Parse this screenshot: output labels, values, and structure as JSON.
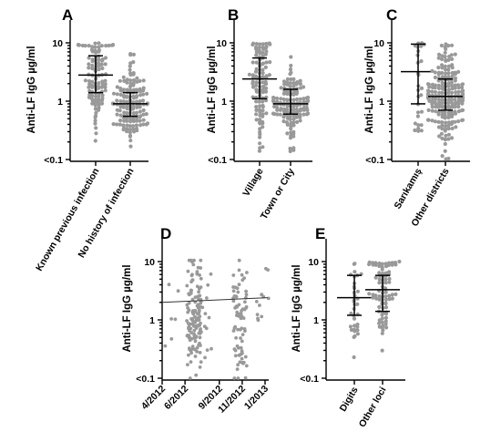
{
  "chart_data": [
    {
      "panel": "A",
      "type": "scatter",
      "ylabel": "Anti-LF IgG µg/ml",
      "yscale": "log",
      "ylim": [
        0.1,
        12
      ],
      "yticks": [
        {
          "v": 10,
          "label": "10"
        },
        {
          "v": 1,
          "label": "1"
        },
        {
          "v": 0.1,
          "label": "<0.1"
        }
      ],
      "categories": [
        "Known previous infection",
        "No history of infection"
      ],
      "groups": [
        {
          "n": 110,
          "median": 2.8,
          "q1": 1.4,
          "q3": 6.0,
          "min": 0.2,
          "max": 10
        },
        {
          "n": 150,
          "median": 0.9,
          "q1": 0.55,
          "q3": 1.4,
          "min": 0.1,
          "max": 7
        }
      ]
    },
    {
      "panel": "B",
      "type": "scatter",
      "ylabel": "Anti-LF IgG µg/ml",
      "yscale": "log",
      "ylim": [
        0.1,
        12
      ],
      "yticks": [
        {
          "v": 10,
          "label": "10"
        },
        {
          "v": 1,
          "label": "1"
        },
        {
          "v": 0.1,
          "label": "<0.1"
        }
      ],
      "categories": [
        "Village",
        "Town or City"
      ],
      "groups": [
        {
          "n": 110,
          "median": 2.4,
          "q1": 1.1,
          "q3": 5.5,
          "min": 0.1,
          "max": 10
        },
        {
          "n": 140,
          "median": 0.9,
          "q1": 0.6,
          "q3": 1.6,
          "min": 0.1,
          "max": 7
        }
      ]
    },
    {
      "panel": "C",
      "type": "scatter",
      "ylabel": "Anti-LF IgG µg/ml",
      "yscale": "log",
      "ylim": [
        0.1,
        12
      ],
      "yticks": [
        {
          "v": 10,
          "label": "10"
        },
        {
          "v": 1,
          "label": "1"
        },
        {
          "v": 0.1,
          "label": "<0.1"
        }
      ],
      "categories": [
        "Sarıkamış",
        "Other districts"
      ],
      "groups": [
        {
          "n": 28,
          "median": 3.2,
          "q1": 0.9,
          "q3": 9.5,
          "min": 0.3,
          "max": 10
        },
        {
          "n": 220,
          "median": 1.2,
          "q1": 0.7,
          "q3": 2.4,
          "min": 0.1,
          "max": 10
        }
      ]
    },
    {
      "panel": "D",
      "type": "scatter",
      "ylabel": "Anti-LF IgG µg/ml",
      "yscale": "log",
      "ylim": [
        0.1,
        12
      ],
      "yticks": [
        {
          "v": 10,
          "label": "10"
        },
        {
          "v": 1,
          "label": "1"
        },
        {
          "v": 0.1,
          "label": "<0.1"
        }
      ],
      "xlim": [
        "2012-04",
        "2013-01"
      ],
      "xticks": [
        "4/2012",
        "6/2012",
        "9/2012",
        "11/2012",
        "1/2013"
      ],
      "clusters": [
        {
          "month": "2012-04",
          "n": 6
        },
        {
          "month": "2012-06",
          "n": 130
        },
        {
          "month": "2012-07",
          "n": 12
        },
        {
          "month": "2012-10",
          "n": 75
        },
        {
          "month": "2012-12",
          "n": 12
        }
      ],
      "trend": [
        {
          "date": "2012-04",
          "y": 2.0
        },
        {
          "date": "2013-01",
          "y": 2.4
        }
      ]
    },
    {
      "panel": "E",
      "type": "scatter",
      "ylabel": "Anti-LF IgG µg/ml",
      "yscale": "log",
      "ylim": [
        0.1,
        12
      ],
      "yticks": [
        {
          "v": 10,
          "label": "10"
        },
        {
          "v": 1,
          "label": "1"
        },
        {
          "v": 0.1,
          "label": "<0.1"
        }
      ],
      "categories": [
        "Digits",
        "Other loci"
      ],
      "groups": [
        {
          "n": 35,
          "median": 2.4,
          "q1": 1.2,
          "q3": 5.8,
          "min": 0.2,
          "max": 10
        },
        {
          "n": 85,
          "median": 3.3,
          "q1": 1.4,
          "q3": 5.8,
          "min": 0.1,
          "max": 10
        }
      ]
    }
  ]
}
